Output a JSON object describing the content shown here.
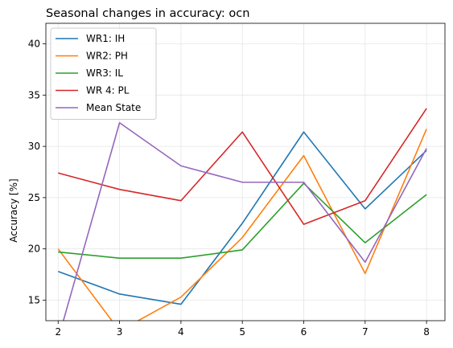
{
  "chart_data": {
    "type": "line",
    "title": "Seasonal changes in accuracy: ocn",
    "xlabel": "",
    "ylabel": "Accuracy [%]",
    "x": [
      2,
      3,
      4,
      5,
      6,
      7,
      8
    ],
    "xlim": [
      1.8,
      8.3
    ],
    "ylim": [
      13,
      42
    ],
    "xticks": [
      2,
      3,
      4,
      5,
      6,
      7,
      8
    ],
    "yticks": [
      15,
      20,
      25,
      30,
      35,
      40
    ],
    "grid": true,
    "legend": "top-left",
    "series": [
      {
        "name": "WR1: IH",
        "color": "#1f77b4",
        "values": [
          17.8,
          15.6,
          14.6,
          22.5,
          31.4,
          23.9,
          29.6
        ]
      },
      {
        "name": "WR2: PH",
        "color": "#ff7f0e",
        "values": [
          20.0,
          12.0,
          15.3,
          21.1,
          29.1,
          17.6,
          31.7
        ]
      },
      {
        "name": "WR3: IL",
        "color": "#2ca02c",
        "values": [
          19.7,
          19.1,
          19.1,
          19.9,
          26.4,
          20.6,
          25.3
        ]
      },
      {
        "name": "WR 4: PL",
        "color": "#d62728",
        "values": [
          27.4,
          25.8,
          24.7,
          31.4,
          22.4,
          24.7,
          33.7
        ]
      },
      {
        "name": "Mean State",
        "color": "#9467bd",
        "values": [
          11.2,
          32.3,
          28.1,
          26.5,
          26.5,
          18.7,
          29.8
        ]
      }
    ]
  }
}
